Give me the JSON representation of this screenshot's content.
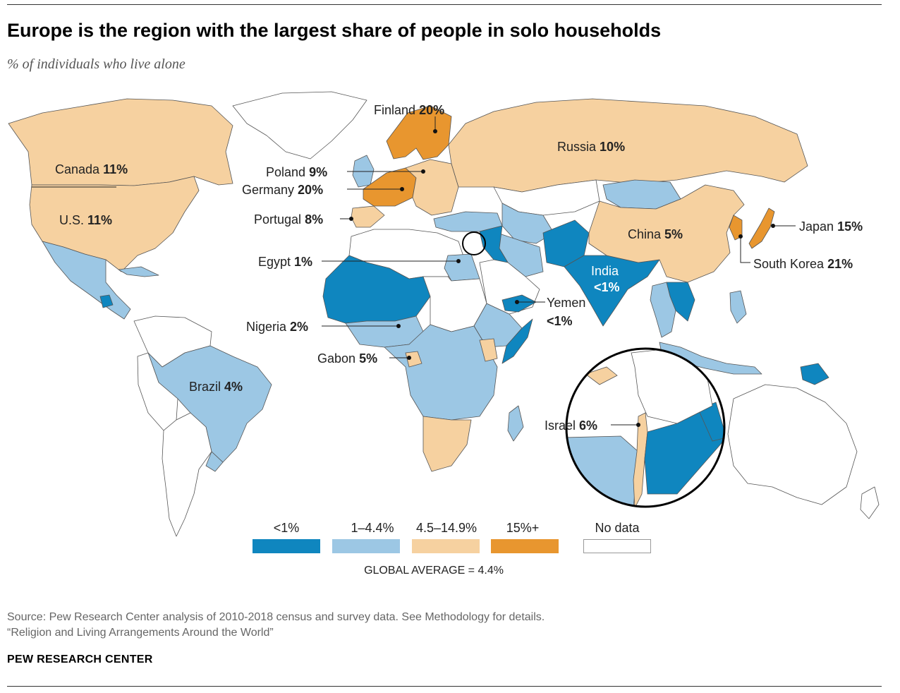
{
  "title": "Europe is the region with the largest share of people in solo households",
  "subtitle": "% of individuals who live alone",
  "colors": {
    "lt1": "#0f86bf",
    "1to4": "#9cc7e4",
    "4to15": "#f6d1a0",
    "15plus": "#e8962f",
    "nodata": "#ffffff",
    "border": "#555555"
  },
  "labels": {
    "canada": {
      "name": "Canada",
      "value": "11%"
    },
    "us": {
      "name": "U.S.",
      "value": "11%"
    },
    "finland": {
      "name": "Finland",
      "value": "20%"
    },
    "poland": {
      "name": "Poland",
      "value": "9%"
    },
    "germany": {
      "name": "Germany",
      "value": "20%"
    },
    "portugal": {
      "name": "Portugal",
      "value": "8%"
    },
    "egypt": {
      "name": "Egypt",
      "value": "1%"
    },
    "nigeria": {
      "name": "Nigeria",
      "value": "2%"
    },
    "gabon": {
      "name": "Gabon",
      "value": "5%"
    },
    "brazil": {
      "name": "Brazil",
      "value": "4%"
    },
    "russia": {
      "name": "Russia",
      "value": "10%"
    },
    "china": {
      "name": "China",
      "value": "5%"
    },
    "india": {
      "name": "India",
      "value": "<1%"
    },
    "yemen": {
      "name": "Yemen",
      "value": "<1%"
    },
    "japan": {
      "name": "Japan",
      "value": "15%"
    },
    "south_korea": {
      "name": "South Korea",
      "value": "21%"
    },
    "israel": {
      "name": "Israel",
      "value": "6%"
    }
  },
  "legend": {
    "items": [
      {
        "label": "<1%",
        "category": "lt1"
      },
      {
        "label": "1–4.4%",
        "category": "1to4"
      },
      {
        "label": "4.5–14.9%",
        "category": "4to15"
      },
      {
        "label": "15%+",
        "category": "15plus"
      },
      {
        "label": "No data",
        "category": "nodata"
      }
    ],
    "global_average": "GLOBAL AVERAGE = 4.4%"
  },
  "source": {
    "line1": "Source: Pew Research Center analysis of 2010-2018 census and survey data. See Methodology for details.",
    "line2": "“Religion and Living Arrangements Around the World”"
  },
  "org": "PEW RESEARCH CENTER"
}
